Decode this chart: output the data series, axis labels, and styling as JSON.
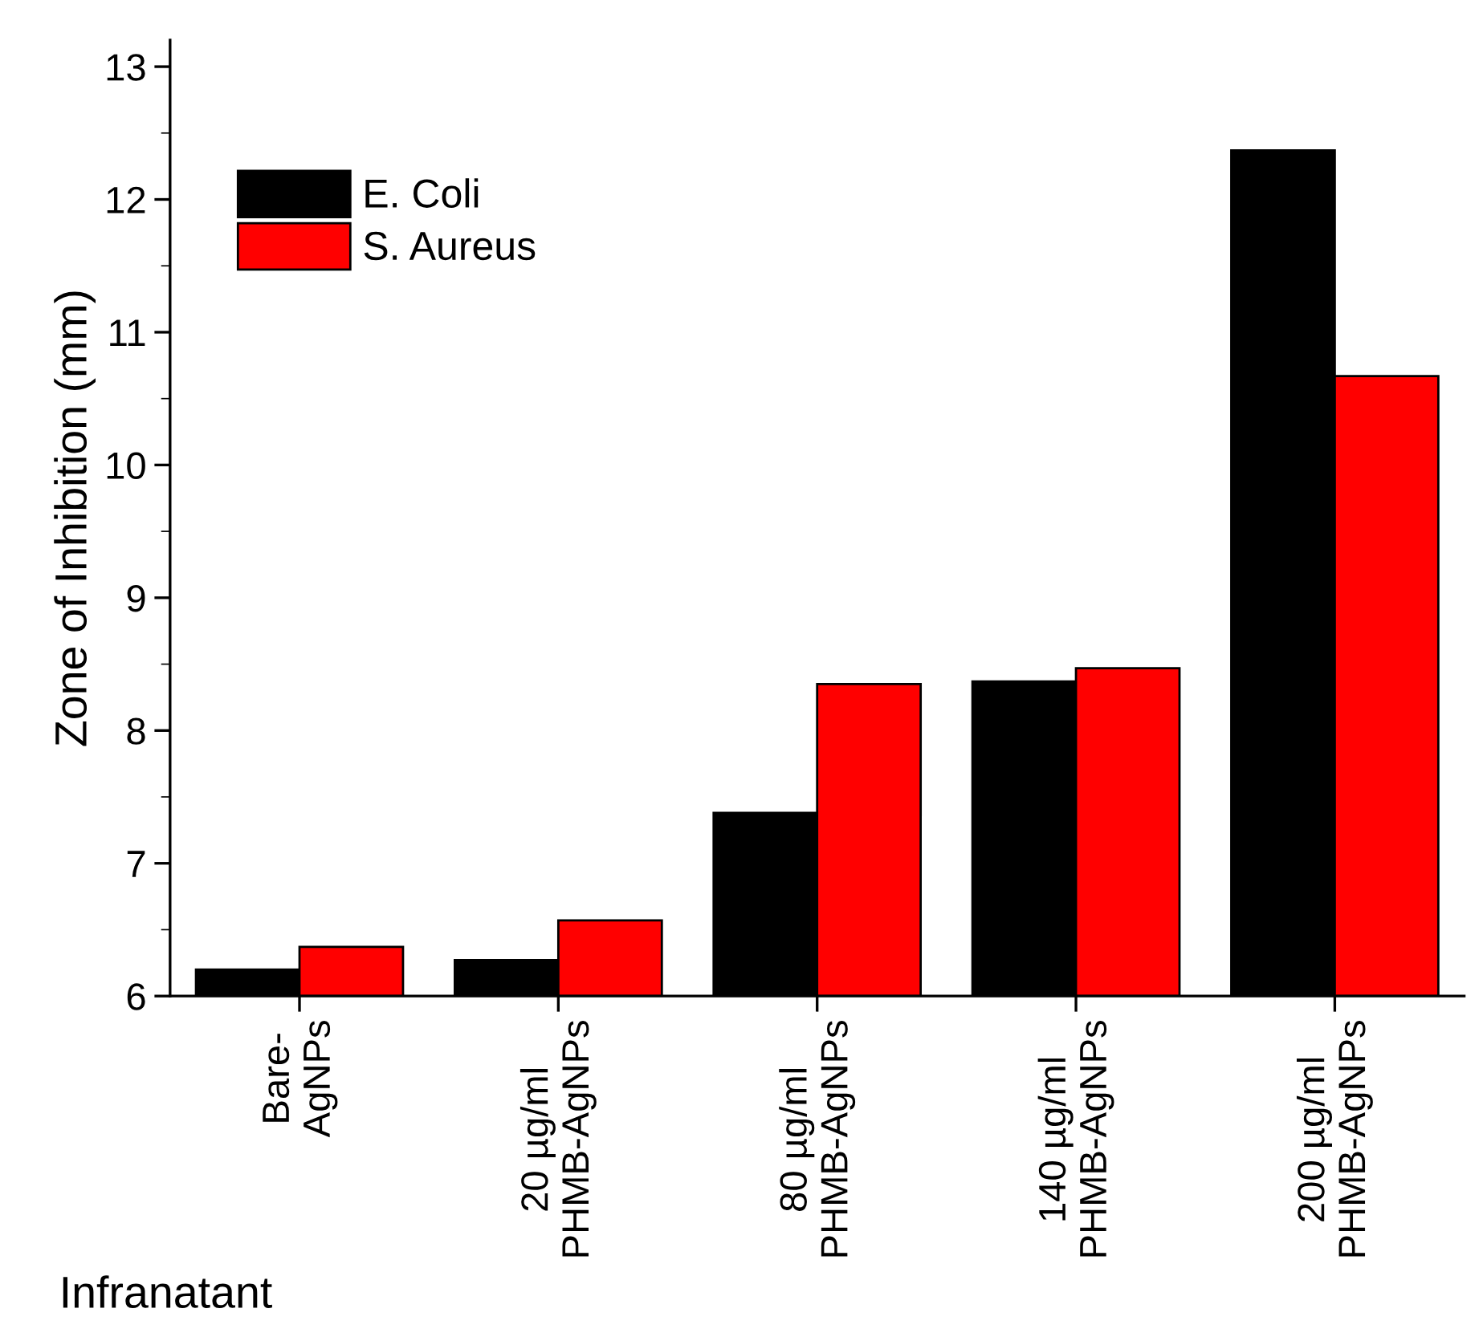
{
  "chart_data": {
    "type": "bar",
    "ylabel": "Zone of Inhibition (mm)",
    "categories": [
      "Bare-\nAgNPs",
      "20 µg/ml\nPHMB-AgNPs",
      "80 µg/ml\nPHMB-AgNPs",
      "140 µg/ml\nPHMB-AgNPs",
      "200 µg/ml\nPHMB-AgNPs"
    ],
    "series": [
      {
        "name": "E. Coli",
        "color": "#000000",
        "values": [
          6.2,
          6.27,
          7.38,
          8.37,
          12.37
        ]
      },
      {
        "name": "S. Aureus",
        "color": "#ff0000",
        "values": [
          6.37,
          6.57,
          8.35,
          8.47,
          10.67
        ]
      }
    ],
    "ylim": [
      6,
      13.2
    ],
    "yticks": [
      6,
      7,
      8,
      9,
      10,
      11,
      12,
      13
    ],
    "grid": false,
    "legend": "top left",
    "annotations": [
      "Infranatant"
    ]
  }
}
